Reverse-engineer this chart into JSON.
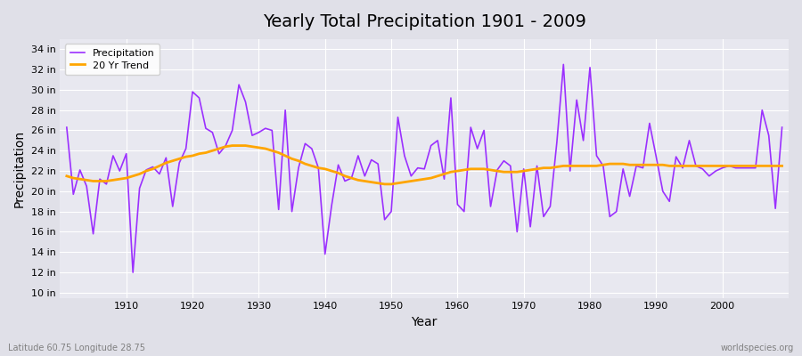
{
  "title": "Yearly Total Precipitation 1901 - 2009",
  "xlabel": "Year",
  "ylabel": "Precipitation",
  "subtitle_left": "Latitude 60.75 Longitude 28.75",
  "watermark": "worldspecies.org",
  "years": [
    1901,
    1902,
    1903,
    1904,
    1905,
    1906,
    1907,
    1908,
    1909,
    1910,
    1911,
    1912,
    1913,
    1914,
    1915,
    1916,
    1917,
    1918,
    1919,
    1920,
    1921,
    1922,
    1923,
    1924,
    1925,
    1926,
    1927,
    1928,
    1929,
    1930,
    1931,
    1932,
    1933,
    1934,
    1935,
    1936,
    1937,
    1938,
    1939,
    1940,
    1941,
    1942,
    1943,
    1944,
    1945,
    1946,
    1947,
    1948,
    1949,
    1950,
    1951,
    1952,
    1953,
    1954,
    1955,
    1956,
    1957,
    1958,
    1959,
    1960,
    1961,
    1962,
    1963,
    1964,
    1965,
    1966,
    1967,
    1968,
    1969,
    1970,
    1971,
    1972,
    1973,
    1974,
    1975,
    1976,
    1977,
    1978,
    1979,
    1980,
    1981,
    1982,
    1983,
    1984,
    1985,
    1986,
    1987,
    1988,
    1989,
    1990,
    1991,
    1992,
    1993,
    1994,
    1995,
    1996,
    1997,
    1998,
    1999,
    2000,
    2001,
    2002,
    2003,
    2004,
    2005,
    2006,
    2007,
    2008,
    2009
  ],
  "precip": [
    26.3,
    19.7,
    22.1,
    20.5,
    15.8,
    21.2,
    20.7,
    23.5,
    22.0,
    23.7,
    12.0,
    20.3,
    22.1,
    22.4,
    21.7,
    23.3,
    18.5,
    22.8,
    24.2,
    29.8,
    29.2,
    26.2,
    25.8,
    23.7,
    24.5,
    26.0,
    30.5,
    28.8,
    25.5,
    25.8,
    26.2,
    26.0,
    18.2,
    28.0,
    18.0,
    22.3,
    24.7,
    24.2,
    22.3,
    13.8,
    18.6,
    22.6,
    21.0,
    21.3,
    23.5,
    21.5,
    23.1,
    22.7,
    17.2,
    18.0,
    27.3,
    23.5,
    21.5,
    22.3,
    22.2,
    24.5,
    25.0,
    21.2,
    29.2,
    18.7,
    18.0,
    26.3,
    24.2,
    26.0,
    18.5,
    22.1,
    23.0,
    22.5,
    16.0,
    22.2,
    16.5,
    22.5,
    17.5,
    18.5,
    24.8,
    32.5,
    22.0,
    29.0,
    25.0,
    32.2,
    23.5,
    22.5,
    17.5,
    18.0,
    22.2,
    19.5,
    22.5,
    22.3,
    26.7,
    23.4,
    20.0,
    19.0,
    23.4,
    22.3,
    25.0,
    22.5,
    22.2,
    21.5,
    22.0,
    22.3,
    22.5,
    22.3,
    22.3,
    22.3,
    22.3,
    28.0,
    25.5,
    18.3,
    26.3
  ],
  "trend": [
    21.5,
    21.3,
    21.2,
    21.1,
    21.0,
    21.0,
    21.0,
    21.1,
    21.2,
    21.3,
    21.5,
    21.7,
    22.0,
    22.2,
    22.5,
    22.8,
    23.0,
    23.2,
    23.4,
    23.5,
    23.7,
    23.8,
    24.0,
    24.2,
    24.4,
    24.5,
    24.5,
    24.5,
    24.4,
    24.3,
    24.2,
    24.0,
    23.8,
    23.5,
    23.2,
    23.0,
    22.7,
    22.5,
    22.3,
    22.2,
    22.0,
    21.8,
    21.5,
    21.3,
    21.1,
    21.0,
    20.9,
    20.8,
    20.7,
    20.7,
    20.8,
    20.9,
    21.0,
    21.1,
    21.2,
    21.3,
    21.5,
    21.7,
    21.9,
    22.0,
    22.1,
    22.2,
    22.2,
    22.2,
    22.1,
    22.0,
    21.9,
    21.9,
    21.9,
    22.0,
    22.1,
    22.2,
    22.3,
    22.3,
    22.4,
    22.5,
    22.5,
    22.5,
    22.5,
    22.5,
    22.5,
    22.6,
    22.7,
    22.7,
    22.7,
    22.6,
    22.6,
    22.6,
    22.6,
    22.6,
    22.6,
    22.5,
    22.5,
    22.5,
    22.5,
    22.5,
    22.5,
    22.5,
    22.5,
    22.5,
    22.5,
    22.5,
    22.5,
    22.5,
    22.5,
    22.5,
    22.5,
    22.5,
    22.5
  ],
  "precip_color": "#9B30FF",
  "trend_color": "#FFA500",
  "bg_color": "#E8E8EE",
  "plot_bg": "#E8E8F0",
  "yticks": [
    10,
    12,
    14,
    16,
    18,
    20,
    22,
    24,
    26,
    28,
    30,
    32,
    34
  ],
  "ylim": [
    9.5,
    35.0
  ],
  "xlim": [
    1900,
    2010
  ],
  "xticks": [
    1910,
    1920,
    1930,
    1940,
    1950,
    1960,
    1970,
    1980,
    1990,
    2000
  ]
}
